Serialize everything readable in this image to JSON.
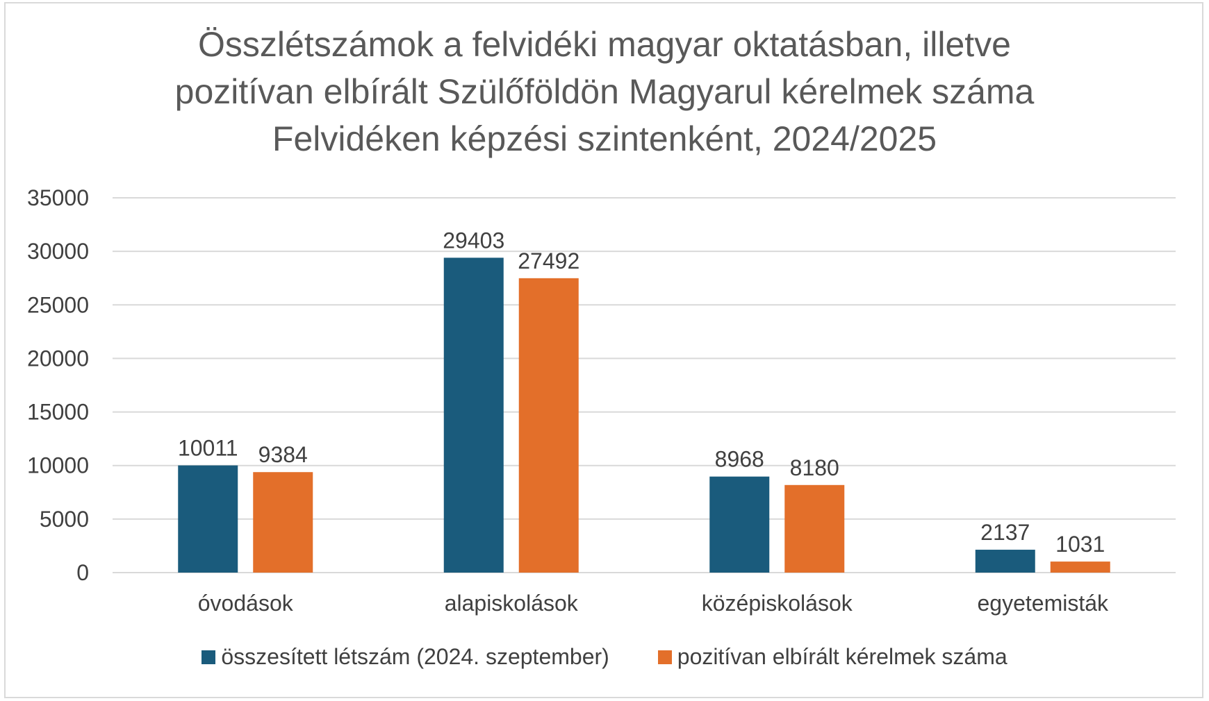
{
  "colors": {
    "series1": "#1a5b7c",
    "series2": "#e36f2a",
    "grid": "#d9d9d9",
    "text": "#404040",
    "title": "#595959"
  },
  "chart_data": {
    "type": "bar",
    "title_lines": [
      "Összlétszámok a felvidéki magyar oktatásban, illetve",
      "pozitívan elbírált Szülőföldön Magyarul kérelmek száma",
      "Felvidéken képzési szintenként, 2024/2025"
    ],
    "xlabel": "",
    "ylabel": "",
    "categories": [
      "óvodások",
      "alapiskolások",
      "középiskolások",
      "egyetemisták"
    ],
    "series": [
      {
        "name": "összesített létszám (2024. szeptember)",
        "values": [
          10011,
          29403,
          8968,
          2137
        ]
      },
      {
        "name": "pozitívan elbírált kérelmek száma",
        "values": [
          9384,
          27492,
          8180,
          1031
        ]
      }
    ],
    "ylim": [
      0,
      35000
    ],
    "yticks": [
      "0",
      "5000",
      "10000",
      "15000",
      "20000",
      "25000",
      "30000",
      "35000"
    ],
    "grid": true,
    "legend_position": "bottom",
    "data_labels": true
  }
}
